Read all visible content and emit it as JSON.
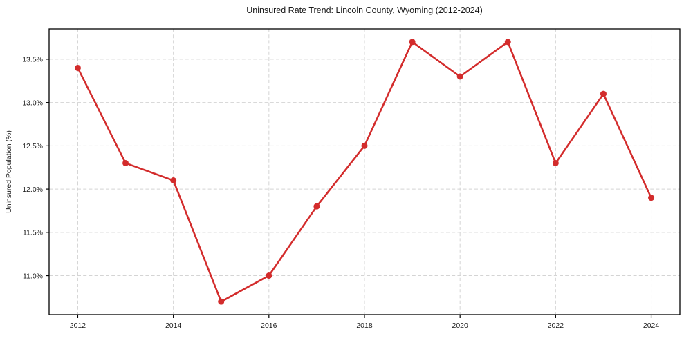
{
  "chart_data": {
    "type": "line",
    "title": "Uninsured Rate Trend: Lincoln County, Wyoming (2012-2024)",
    "xlabel": "",
    "ylabel": "Uninsured Population (%)",
    "x": [
      2012,
      2013,
      2014,
      2015,
      2016,
      2017,
      2018,
      2019,
      2020,
      2021,
      2022,
      2023,
      2024
    ],
    "values": [
      13.4,
      12.3,
      12.1,
      10.7,
      11.0,
      11.8,
      12.5,
      13.7,
      13.3,
      13.7,
      12.3,
      13.1,
      11.9
    ],
    "xticks": [
      2012,
      2014,
      2016,
      2018,
      2020,
      2022,
      2024
    ],
    "xtick_labels": [
      "2012",
      "2014",
      "2016",
      "2018",
      "2020",
      "2022",
      "2024"
    ],
    "yticks": [
      11.0,
      11.5,
      12.0,
      12.5,
      13.0,
      13.5
    ],
    "ytick_labels": [
      "11.0%",
      "11.5%",
      "12.0%",
      "12.5%",
      "13.0%",
      "13.5%"
    ],
    "xlim": [
      2011.4,
      2024.6
    ],
    "ylim": [
      10.55,
      13.85
    ],
    "grid": true,
    "legend": "none",
    "line_color": "#d32c2c",
    "marker": "circle",
    "grid_color": "#d4d4d4",
    "spine_color": "#000000",
    "background": "#ffffff"
  }
}
